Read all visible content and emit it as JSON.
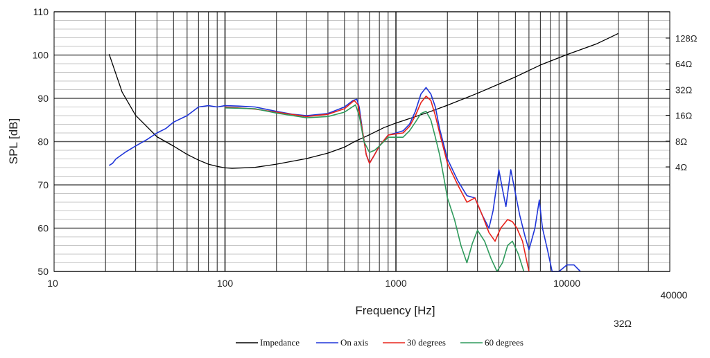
{
  "chart_data": {
    "type": "line",
    "title": "",
    "xlabel": "Frequency [Hz]",
    "ylabel": "SPL [dB]",
    "x_scale": "log",
    "xlim": [
      10,
      40000
    ],
    "ylim": [
      50,
      110
    ],
    "grid": true,
    "legend_position": "bottom",
    "x_ticks": [
      {
        "value": 10,
        "label": "10"
      },
      {
        "value": 100,
        "label": "100"
      },
      {
        "value": 1000,
        "label": "1000"
      },
      {
        "value": 10000,
        "label": "10000"
      },
      {
        "value": 40000,
        "label": "40000"
      }
    ],
    "y_ticks": [
      {
        "value": 50,
        "label": "50"
      },
      {
        "value": 60,
        "label": "60"
      },
      {
        "value": 70,
        "label": "70"
      },
      {
        "value": 80,
        "label": "80"
      },
      {
        "value": 90,
        "label": "90"
      },
      {
        "value": 100,
        "label": "100"
      },
      {
        "value": 110,
        "label": "110"
      }
    ],
    "y2_scale": "log",
    "y2_ticks": [
      {
        "value": 4,
        "label": "4Ω"
      },
      {
        "value": 8,
        "label": "8Ω"
      },
      {
        "value": 16,
        "label": "16Ω"
      },
      {
        "value": 32,
        "label": "32Ω"
      },
      {
        "value": 64,
        "label": "64Ω"
      },
      {
        "value": 128,
        "label": "128Ω"
      }
    ],
    "y2_extra_label": "32Ω",
    "series": [
      {
        "name": "Impedance",
        "axis": "y2",
        "color": "#000000",
        "points": [
          [
            21,
            83
          ],
          [
            25,
            30
          ],
          [
            30,
            16
          ],
          [
            40,
            9
          ],
          [
            50,
            7
          ],
          [
            60,
            5.6
          ],
          [
            70,
            4.8
          ],
          [
            80,
            4.3
          ],
          [
            90,
            4.05
          ],
          [
            100,
            3.9
          ],
          [
            110,
            3.85
          ],
          [
            150,
            3.95
          ],
          [
            200,
            4.3
          ],
          [
            300,
            5
          ],
          [
            400,
            5.8
          ],
          [
            500,
            6.8
          ],
          [
            580,
            8
          ],
          [
            700,
            9.5
          ],
          [
            850,
            11.5
          ],
          [
            1000,
            13
          ],
          [
            1500,
            17
          ],
          [
            2000,
            21
          ],
          [
            3000,
            29
          ],
          [
            5000,
            45
          ],
          [
            7000,
            62
          ],
          [
            10000,
            82
          ],
          [
            15000,
            110
          ],
          [
            20000,
            145
          ]
        ]
      },
      {
        "name": "On axis",
        "axis": "y",
        "color": "#1f35d8",
        "points": [
          [
            21,
            74.5
          ],
          [
            22,
            75
          ],
          [
            23,
            76
          ],
          [
            26,
            77.5
          ],
          [
            30,
            79
          ],
          [
            35,
            80.5
          ],
          [
            40,
            82
          ],
          [
            45,
            83
          ],
          [
            50,
            84.5
          ],
          [
            60,
            86
          ],
          [
            70,
            88
          ],
          [
            80,
            88.3
          ],
          [
            90,
            88
          ],
          [
            100,
            88.3
          ],
          [
            120,
            88.2
          ],
          [
            150,
            88
          ],
          [
            200,
            87
          ],
          [
            250,
            86.3
          ],
          [
            300,
            86
          ],
          [
            400,
            86.5
          ],
          [
            500,
            88
          ],
          [
            560,
            89.5
          ],
          [
            590,
            89.8
          ],
          [
            610,
            88
          ],
          [
            640,
            82
          ],
          [
            670,
            77
          ],
          [
            700,
            75
          ],
          [
            750,
            77
          ],
          [
            800,
            79
          ],
          [
            900,
            81.5
          ],
          [
            1000,
            82
          ],
          [
            1100,
            82.5
          ],
          [
            1200,
            84
          ],
          [
            1300,
            87
          ],
          [
            1400,
            91
          ],
          [
            1500,
            92.5
          ],
          [
            1600,
            91
          ],
          [
            1700,
            88
          ],
          [
            1800,
            83
          ],
          [
            2000,
            76
          ],
          [
            2300,
            71
          ],
          [
            2600,
            67.5
          ],
          [
            2900,
            67
          ],
          [
            3200,
            63
          ],
          [
            3500,
            60
          ],
          [
            3700,
            64
          ],
          [
            4000,
            73.5
          ],
          [
            4200,
            69
          ],
          [
            4400,
            65
          ],
          [
            4700,
            73.5
          ],
          [
            5000,
            68
          ],
          [
            5300,
            63
          ],
          [
            5700,
            58
          ],
          [
            6000,
            55
          ],
          [
            6500,
            60
          ],
          [
            6900,
            66.5
          ],
          [
            7200,
            60
          ],
          [
            7700,
            55
          ],
          [
            8200,
            50
          ],
          [
            9000,
            50
          ],
          [
            10000,
            51.5
          ],
          [
            11000,
            51.5
          ],
          [
            12000,
            50
          ]
        ]
      },
      {
        "name": "30 degrees",
        "axis": "y",
        "color": "#e8231b",
        "points": [
          [
            100,
            88
          ],
          [
            150,
            87.5
          ],
          [
            200,
            86.8
          ],
          [
            300,
            85.8
          ],
          [
            400,
            86.3
          ],
          [
            500,
            87.6
          ],
          [
            570,
            89.5
          ],
          [
            600,
            88.5
          ],
          [
            640,
            82
          ],
          [
            670,
            77
          ],
          [
            700,
            75
          ],
          [
            750,
            77
          ],
          [
            800,
            79
          ],
          [
            900,
            81.5
          ],
          [
            1000,
            81.8
          ],
          [
            1100,
            82
          ],
          [
            1200,
            83.5
          ],
          [
            1300,
            86
          ],
          [
            1400,
            89
          ],
          [
            1500,
            90.5
          ],
          [
            1600,
            89.5
          ],
          [
            1700,
            86
          ],
          [
            1800,
            82
          ],
          [
            2000,
            75
          ],
          [
            2300,
            70
          ],
          [
            2600,
            66
          ],
          [
            2900,
            67
          ],
          [
            3200,
            63
          ],
          [
            3500,
            59
          ],
          [
            3800,
            57
          ],
          [
            4100,
            60
          ],
          [
            4500,
            62
          ],
          [
            4800,
            61.5
          ],
          [
            5100,
            60
          ],
          [
            5500,
            57
          ],
          [
            6000,
            50
          ]
        ]
      },
      {
        "name": "60 degrees",
        "axis": "y",
        "color": "#2f9a5c",
        "points": [
          [
            100,
            87.8
          ],
          [
            150,
            87.6
          ],
          [
            200,
            86.6
          ],
          [
            300,
            85.5
          ],
          [
            400,
            85.8
          ],
          [
            500,
            86.8
          ],
          [
            580,
            88.5
          ],
          [
            610,
            86
          ],
          [
            650,
            80
          ],
          [
            700,
            77.5
          ],
          [
            750,
            78
          ],
          [
            800,
            79
          ],
          [
            900,
            81
          ],
          [
            1000,
            81
          ],
          [
            1100,
            81
          ],
          [
            1200,
            82.5
          ],
          [
            1300,
            84.5
          ],
          [
            1400,
            86.5
          ],
          [
            1500,
            87
          ],
          [
            1600,
            85
          ],
          [
            1700,
            81
          ],
          [
            1800,
            77
          ],
          [
            1900,
            72
          ],
          [
            2000,
            67
          ],
          [
            2200,
            62
          ],
          [
            2400,
            56
          ],
          [
            2600,
            52
          ],
          [
            2800,
            56.5
          ],
          [
            3000,
            59.5
          ],
          [
            3300,
            57
          ],
          [
            3600,
            53
          ],
          [
            3900,
            50
          ],
          [
            4200,
            52
          ],
          [
            4500,
            56
          ],
          [
            4800,
            57
          ],
          [
            5200,
            54
          ],
          [
            5600,
            50
          ]
        ]
      }
    ]
  }
}
